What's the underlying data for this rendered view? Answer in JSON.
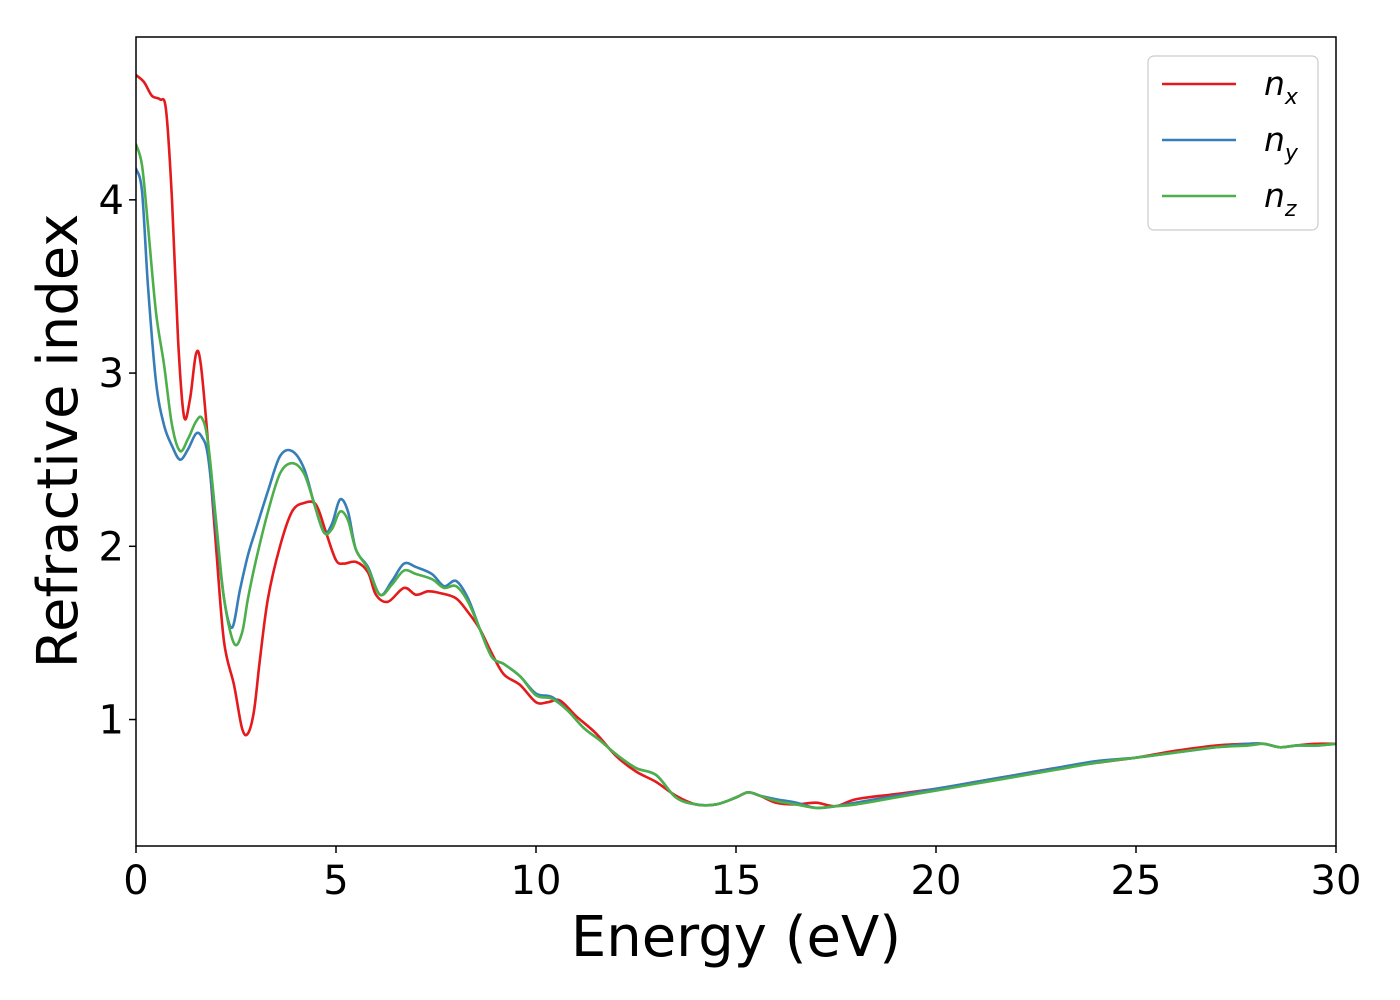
{
  "chart_data": {
    "type": "line",
    "xlabel": "Energy (eV)",
    "ylabel": "Refractive index",
    "xlim": [
      0,
      30
    ],
    "ylim": [
      0.27,
      4.94
    ],
    "xticks": [
      0,
      5,
      10,
      15,
      20,
      25,
      30
    ],
    "xtick_labels": [
      "0",
      "5",
      "10",
      "15",
      "20",
      "25",
      "30"
    ],
    "yticks": [
      1,
      2,
      3,
      4
    ],
    "ytick_labels": [
      "1",
      "2",
      "3",
      "4"
    ],
    "grid": false,
    "legend_position": "top-right",
    "series": [
      {
        "name": "n_x",
        "label_base": "n",
        "label_sub": "x",
        "color": "#e41a1c",
        "x": [
          0,
          0.2,
          0.4,
          0.6,
          0.75,
          0.9,
          1.05,
          1.2,
          1.35,
          1.5,
          1.62,
          1.8,
          2.0,
          2.2,
          2.45,
          2.65,
          2.8,
          2.95,
          3.1,
          3.3,
          3.6,
          3.9,
          4.2,
          4.5,
          4.75,
          5.0,
          5.2,
          5.5,
          5.8,
          6.0,
          6.3,
          6.7,
          7.0,
          7.3,
          7.6,
          8.0,
          8.3,
          8.6,
          8.9,
          9.2,
          9.6,
          10.0,
          10.3,
          10.6,
          11.0,
          11.5,
          12.0,
          12.5,
          13.0,
          13.5,
          14.0,
          14.5,
          15.0,
          15.3,
          15.6,
          16.0,
          16.5,
          17.0,
          17.5,
          18.0,
          19.0,
          20.0,
          21.0,
          22.0,
          23.0,
          24.0,
          25.0,
          26.0,
          27.0,
          27.8,
          28.2,
          28.6,
          29.0,
          29.5,
          30.0
        ],
        "y": [
          4.72,
          4.68,
          4.6,
          4.58,
          4.52,
          4.0,
          3.2,
          2.75,
          2.85,
          3.11,
          3.05,
          2.6,
          2.0,
          1.45,
          1.2,
          0.95,
          0.92,
          1.05,
          1.35,
          1.7,
          2.0,
          2.2,
          2.25,
          2.24,
          2.08,
          1.92,
          1.9,
          1.91,
          1.85,
          1.72,
          1.68,
          1.76,
          1.72,
          1.74,
          1.73,
          1.7,
          1.62,
          1.52,
          1.38,
          1.26,
          1.2,
          1.1,
          1.1,
          1.11,
          1.02,
          0.92,
          0.79,
          0.7,
          0.64,
          0.56,
          0.51,
          0.51,
          0.55,
          0.58,
          0.56,
          0.52,
          0.51,
          0.52,
          0.5,
          0.54,
          0.57,
          0.6,
          0.64,
          0.68,
          0.72,
          0.75,
          0.78,
          0.82,
          0.85,
          0.86,
          0.86,
          0.84,
          0.85,
          0.86,
          0.86
        ]
      },
      {
        "name": "n_y",
        "label_base": "n",
        "label_sub": "y",
        "color": "#377eb8",
        "x": [
          0,
          0.15,
          0.3,
          0.5,
          0.7,
          0.9,
          1.1,
          1.3,
          1.5,
          1.65,
          1.8,
          2.0,
          2.2,
          2.4,
          2.6,
          2.8,
          3.0,
          3.3,
          3.6,
          3.9,
          4.2,
          4.45,
          4.7,
          4.9,
          5.1,
          5.3,
          5.5,
          5.8,
          6.1,
          6.4,
          6.7,
          7.0,
          7.4,
          7.7,
          8.0,
          8.3,
          8.6,
          8.9,
          9.2,
          9.6,
          10.0,
          10.4,
          10.8,
          11.2,
          11.6,
          12.0,
          12.5,
          13.0,
          13.5,
          14.0,
          14.5,
          15.0,
          15.3,
          15.6,
          16.0,
          16.5,
          17.0,
          17.5,
          18.0,
          19.0,
          20.0,
          21.0,
          22.0,
          23.0,
          24.0,
          25.0,
          26.0,
          27.0,
          27.8,
          28.2,
          28.6,
          29.0,
          29.5,
          30.0
        ],
        "y": [
          4.18,
          4.05,
          3.5,
          2.95,
          2.7,
          2.58,
          2.5,
          2.56,
          2.65,
          2.63,
          2.52,
          2.1,
          1.7,
          1.53,
          1.75,
          1.95,
          2.1,
          2.32,
          2.52,
          2.55,
          2.45,
          2.25,
          2.08,
          2.13,
          2.27,
          2.2,
          1.98,
          1.88,
          1.72,
          1.8,
          1.9,
          1.88,
          1.84,
          1.77,
          1.8,
          1.7,
          1.52,
          1.36,
          1.32,
          1.25,
          1.15,
          1.13,
          1.05,
          0.95,
          0.88,
          0.8,
          0.72,
          0.68,
          0.55,
          0.51,
          0.51,
          0.55,
          0.58,
          0.56,
          0.54,
          0.52,
          0.49,
          0.5,
          0.52,
          0.56,
          0.6,
          0.64,
          0.68,
          0.72,
          0.76,
          0.78,
          0.81,
          0.84,
          0.86,
          0.86,
          0.84,
          0.85,
          0.85,
          0.86
        ]
      },
      {
        "name": "n_z",
        "label_base": "n",
        "label_sub": "z",
        "color": "#4daf4a",
        "x": [
          0,
          0.15,
          0.3,
          0.5,
          0.7,
          0.9,
          1.1,
          1.3,
          1.5,
          1.65,
          1.8,
          2.0,
          2.2,
          2.45,
          2.65,
          2.8,
          3.0,
          3.3,
          3.6,
          3.9,
          4.2,
          4.45,
          4.7,
          4.9,
          5.1,
          5.3,
          5.5,
          5.8,
          6.1,
          6.4,
          6.7,
          7.0,
          7.4,
          7.7,
          8.0,
          8.3,
          8.6,
          8.9,
          9.2,
          9.6,
          10.0,
          10.4,
          10.8,
          11.2,
          11.6,
          12.0,
          12.5,
          13.0,
          13.5,
          14.0,
          14.5,
          15.0,
          15.3,
          15.6,
          16.0,
          16.5,
          17.0,
          17.5,
          18.0,
          19.0,
          20.0,
          21.0,
          22.0,
          23.0,
          24.0,
          25.0,
          26.0,
          27.0,
          27.8,
          28.2,
          28.6,
          29.0,
          29.5,
          30.0
        ],
        "y": [
          4.32,
          4.2,
          3.85,
          3.35,
          3.05,
          2.7,
          2.55,
          2.62,
          2.72,
          2.74,
          2.6,
          2.15,
          1.7,
          1.44,
          1.5,
          1.7,
          1.92,
          2.2,
          2.42,
          2.48,
          2.42,
          2.25,
          2.08,
          2.1,
          2.2,
          2.15,
          1.98,
          1.87,
          1.72,
          1.78,
          1.86,
          1.84,
          1.81,
          1.76,
          1.77,
          1.68,
          1.52,
          1.36,
          1.32,
          1.25,
          1.14,
          1.12,
          1.05,
          0.95,
          0.88,
          0.8,
          0.72,
          0.68,
          0.55,
          0.51,
          0.51,
          0.55,
          0.58,
          0.56,
          0.53,
          0.51,
          0.49,
          0.5,
          0.51,
          0.55,
          0.59,
          0.63,
          0.67,
          0.71,
          0.75,
          0.78,
          0.81,
          0.84,
          0.85,
          0.86,
          0.84,
          0.85,
          0.85,
          0.86
        ]
      }
    ]
  }
}
